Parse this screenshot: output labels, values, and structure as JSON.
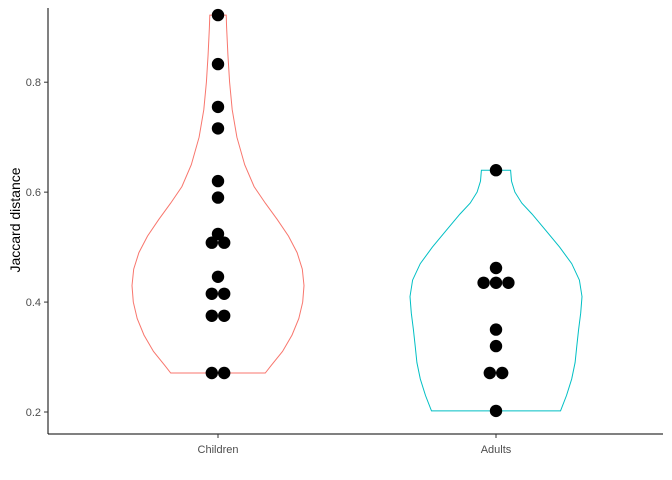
{
  "chart_data": {
    "type": "violin",
    "title": "",
    "xlabel": "",
    "ylabel": "Jaccard distance",
    "ylim": [
      0.16,
      0.935
    ],
    "y_ticks": [
      0.2,
      0.4,
      0.6,
      0.8
    ],
    "y_tick_labels": [
      "0.2",
      "0.4",
      "0.6",
      "0.8"
    ],
    "categories": [
      "Children",
      "Adults"
    ],
    "grid": false,
    "legend": "none",
    "series": [
      {
        "category": "Children",
        "color": "#F8766D",
        "points": [
          0.922,
          0.833,
          0.755,
          0.716,
          0.62,
          0.59,
          0.524,
          0.508,
          0.508,
          0.446,
          0.415,
          0.415,
          0.375,
          0.375,
          0.271,
          0.271
        ],
        "density": [
          [
            0.271,
            0.55
          ],
          [
            0.285,
            0.62
          ],
          [
            0.31,
            0.75
          ],
          [
            0.34,
            0.86
          ],
          [
            0.37,
            0.94
          ],
          [
            0.4,
            0.985
          ],
          [
            0.43,
            1.0
          ],
          [
            0.46,
            0.98
          ],
          [
            0.49,
            0.92
          ],
          [
            0.52,
            0.82
          ],
          [
            0.55,
            0.69
          ],
          [
            0.58,
            0.55
          ],
          [
            0.61,
            0.42
          ],
          [
            0.65,
            0.31
          ],
          [
            0.7,
            0.22
          ],
          [
            0.75,
            0.165
          ],
          [
            0.8,
            0.135
          ],
          [
            0.85,
            0.115
          ],
          [
            0.9,
            0.1
          ],
          [
            0.922,
            0.095
          ]
        ]
      },
      {
        "category": "Adults",
        "color": "#00BFC4",
        "points": [
          0.64,
          0.462,
          0.435,
          0.435,
          0.435,
          0.35,
          0.32,
          0.271,
          0.271,
          0.202
        ],
        "density": [
          [
            0.202,
            0.75
          ],
          [
            0.23,
            0.82
          ],
          [
            0.26,
            0.88
          ],
          [
            0.29,
            0.92
          ],
          [
            0.32,
            0.94
          ],
          [
            0.35,
            0.96
          ],
          [
            0.38,
            0.985
          ],
          [
            0.41,
            1.0
          ],
          [
            0.44,
            0.97
          ],
          [
            0.47,
            0.88
          ],
          [
            0.5,
            0.74
          ],
          [
            0.53,
            0.58
          ],
          [
            0.56,
            0.42
          ],
          [
            0.58,
            0.3
          ],
          [
            0.6,
            0.22
          ],
          [
            0.62,
            0.18
          ],
          [
            0.64,
            0.17
          ]
        ]
      }
    ]
  }
}
